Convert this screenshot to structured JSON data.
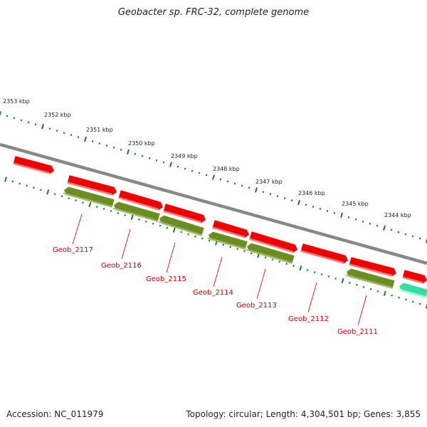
{
  "title": "Geobacter sp. FRC-32, complete genome",
  "footer": {
    "accession": "Accession: NC_011979",
    "summary": "Topology: circular; Length: 4,304,501 bp; Genes: 3,855"
  },
  "colors": {
    "backbone": "#8a8a8a",
    "forward_gene": "#ee0000",
    "reverse_gene": "#6b8e23",
    "rna_gene": "#33e0a0",
    "ticks": "#1e7a1e",
    "gene_label": "#cc0000"
  },
  "scale": {
    "unit": "kbp",
    "ticks": [
      "2353 kbp",
      "2352 kbp",
      "2351 kbp",
      "2350 kbp",
      "2349 kbp",
      "2348 kbp",
      "2347 kbp",
      "2346 kbp",
      "2345 kbp",
      "2344 kbp"
    ]
  },
  "gene_labels": [
    "Geob_2117",
    "Geob_2116",
    "Geob_2115",
    "Geob_2114",
    "Geob_2113",
    "Geob_2112",
    "Geob_2111"
  ]
}
